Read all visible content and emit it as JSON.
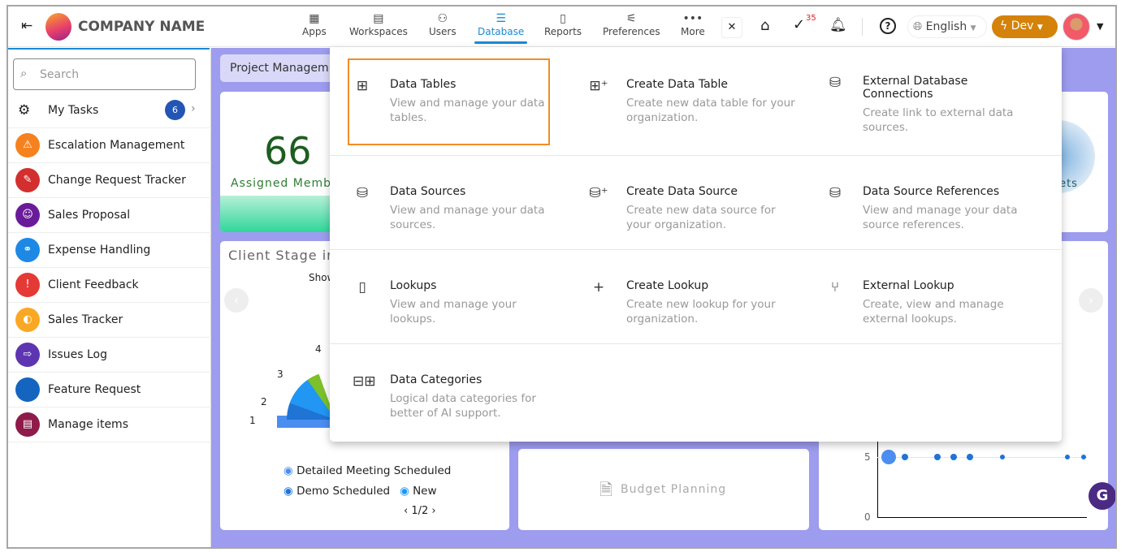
{
  "header": {
    "company": "COMPANY NAME",
    "nav": [
      {
        "label": "Apps",
        "icon": "apps-grid-icon"
      },
      {
        "label": "Workspaces",
        "icon": "workspaces-icon"
      },
      {
        "label": "Users",
        "icon": "users-icon"
      },
      {
        "label": "Database",
        "icon": "database-icon",
        "active": true
      },
      {
        "label": "Reports",
        "icon": "reports-icon"
      },
      {
        "label": "Preferences",
        "icon": "preferences-icon"
      },
      {
        "label": "More",
        "icon": "more-icon"
      }
    ],
    "close": "✕",
    "tasks_count": "35",
    "language": "English",
    "env": "Dev"
  },
  "sidebar": {
    "search_placeholder": "Search",
    "my_tasks": "My Tasks",
    "my_tasks_count": "6",
    "items": [
      {
        "label": "Escalation Management",
        "color": "#f5821f"
      },
      {
        "label": "Change Request Tracker",
        "color": "#d32f2f"
      },
      {
        "label": "Sales Proposal",
        "color": "#6a1b9a"
      },
      {
        "label": "Expense Handling",
        "color": "#1e88e5"
      },
      {
        "label": "Client Feedback",
        "color": "#e53935"
      },
      {
        "label": "Sales Tracker",
        "color": "#f9a825"
      },
      {
        "label": "Issues Log",
        "color": "#5e35b1"
      },
      {
        "label": "Feature Request",
        "color": "#1565c0"
      },
      {
        "label": "Manage items",
        "color": "#8e1b4a"
      }
    ]
  },
  "main": {
    "tab": "Project Managem",
    "stat_value": "66",
    "stat_label": "Assigned Memb",
    "stat2_label": "kets",
    "client_stage_title": "Client Stage ir",
    "show_text": "Show",
    "pie_labels": [
      "1",
      "2",
      "3",
      "4"
    ],
    "legend": [
      "Detailed Meeting Scheduled",
      "Demo Scheduled",
      "New"
    ],
    "pager": "1/2",
    "budget": "Budget Planning",
    "scatter_yticks": [
      "5",
      "0"
    ]
  },
  "chart_colors": {
    "accent": "#1a8ad4",
    "selected_border": "#f28c28",
    "background": "#9d9cee",
    "dev": "#d4820a"
  },
  "dropdown": {
    "rows": [
      [
        {
          "title": "Data Tables",
          "desc": "View and manage your data tables.",
          "icon": "table-icon"
        },
        {
          "title": "Create Data Table",
          "desc": "Create new data table for your organization.",
          "icon": "table-add-icon"
        },
        {
          "title": "External Database Connections",
          "desc": "Create link to external data sources.",
          "icon": "external-db-icon"
        }
      ],
      [
        {
          "title": "Data Sources",
          "desc": "View and manage your data sources.",
          "icon": "data-source-icon"
        },
        {
          "title": "Create Data Source",
          "desc": "Create new data source for your organization.",
          "icon": "data-source-add-icon"
        },
        {
          "title": "Data Source References",
          "desc": "View and manage your data source references.",
          "icon": "data-source-ref-icon"
        }
      ],
      [
        {
          "title": "Lookups",
          "desc": "View and manage your lookups.",
          "icon": "lookup-icon"
        },
        {
          "title": "Create Lookup",
          "desc": "Create new lookup for your organization.",
          "icon": "plus-icon"
        },
        {
          "title": "External Lookup",
          "desc": "Create, view and manage external lookups.",
          "icon": "external-lookup-icon"
        }
      ],
      [
        {
          "title": "Data Categories",
          "desc": "Logical data categories for better of AI support.",
          "icon": "data-categories-icon"
        }
      ]
    ]
  }
}
